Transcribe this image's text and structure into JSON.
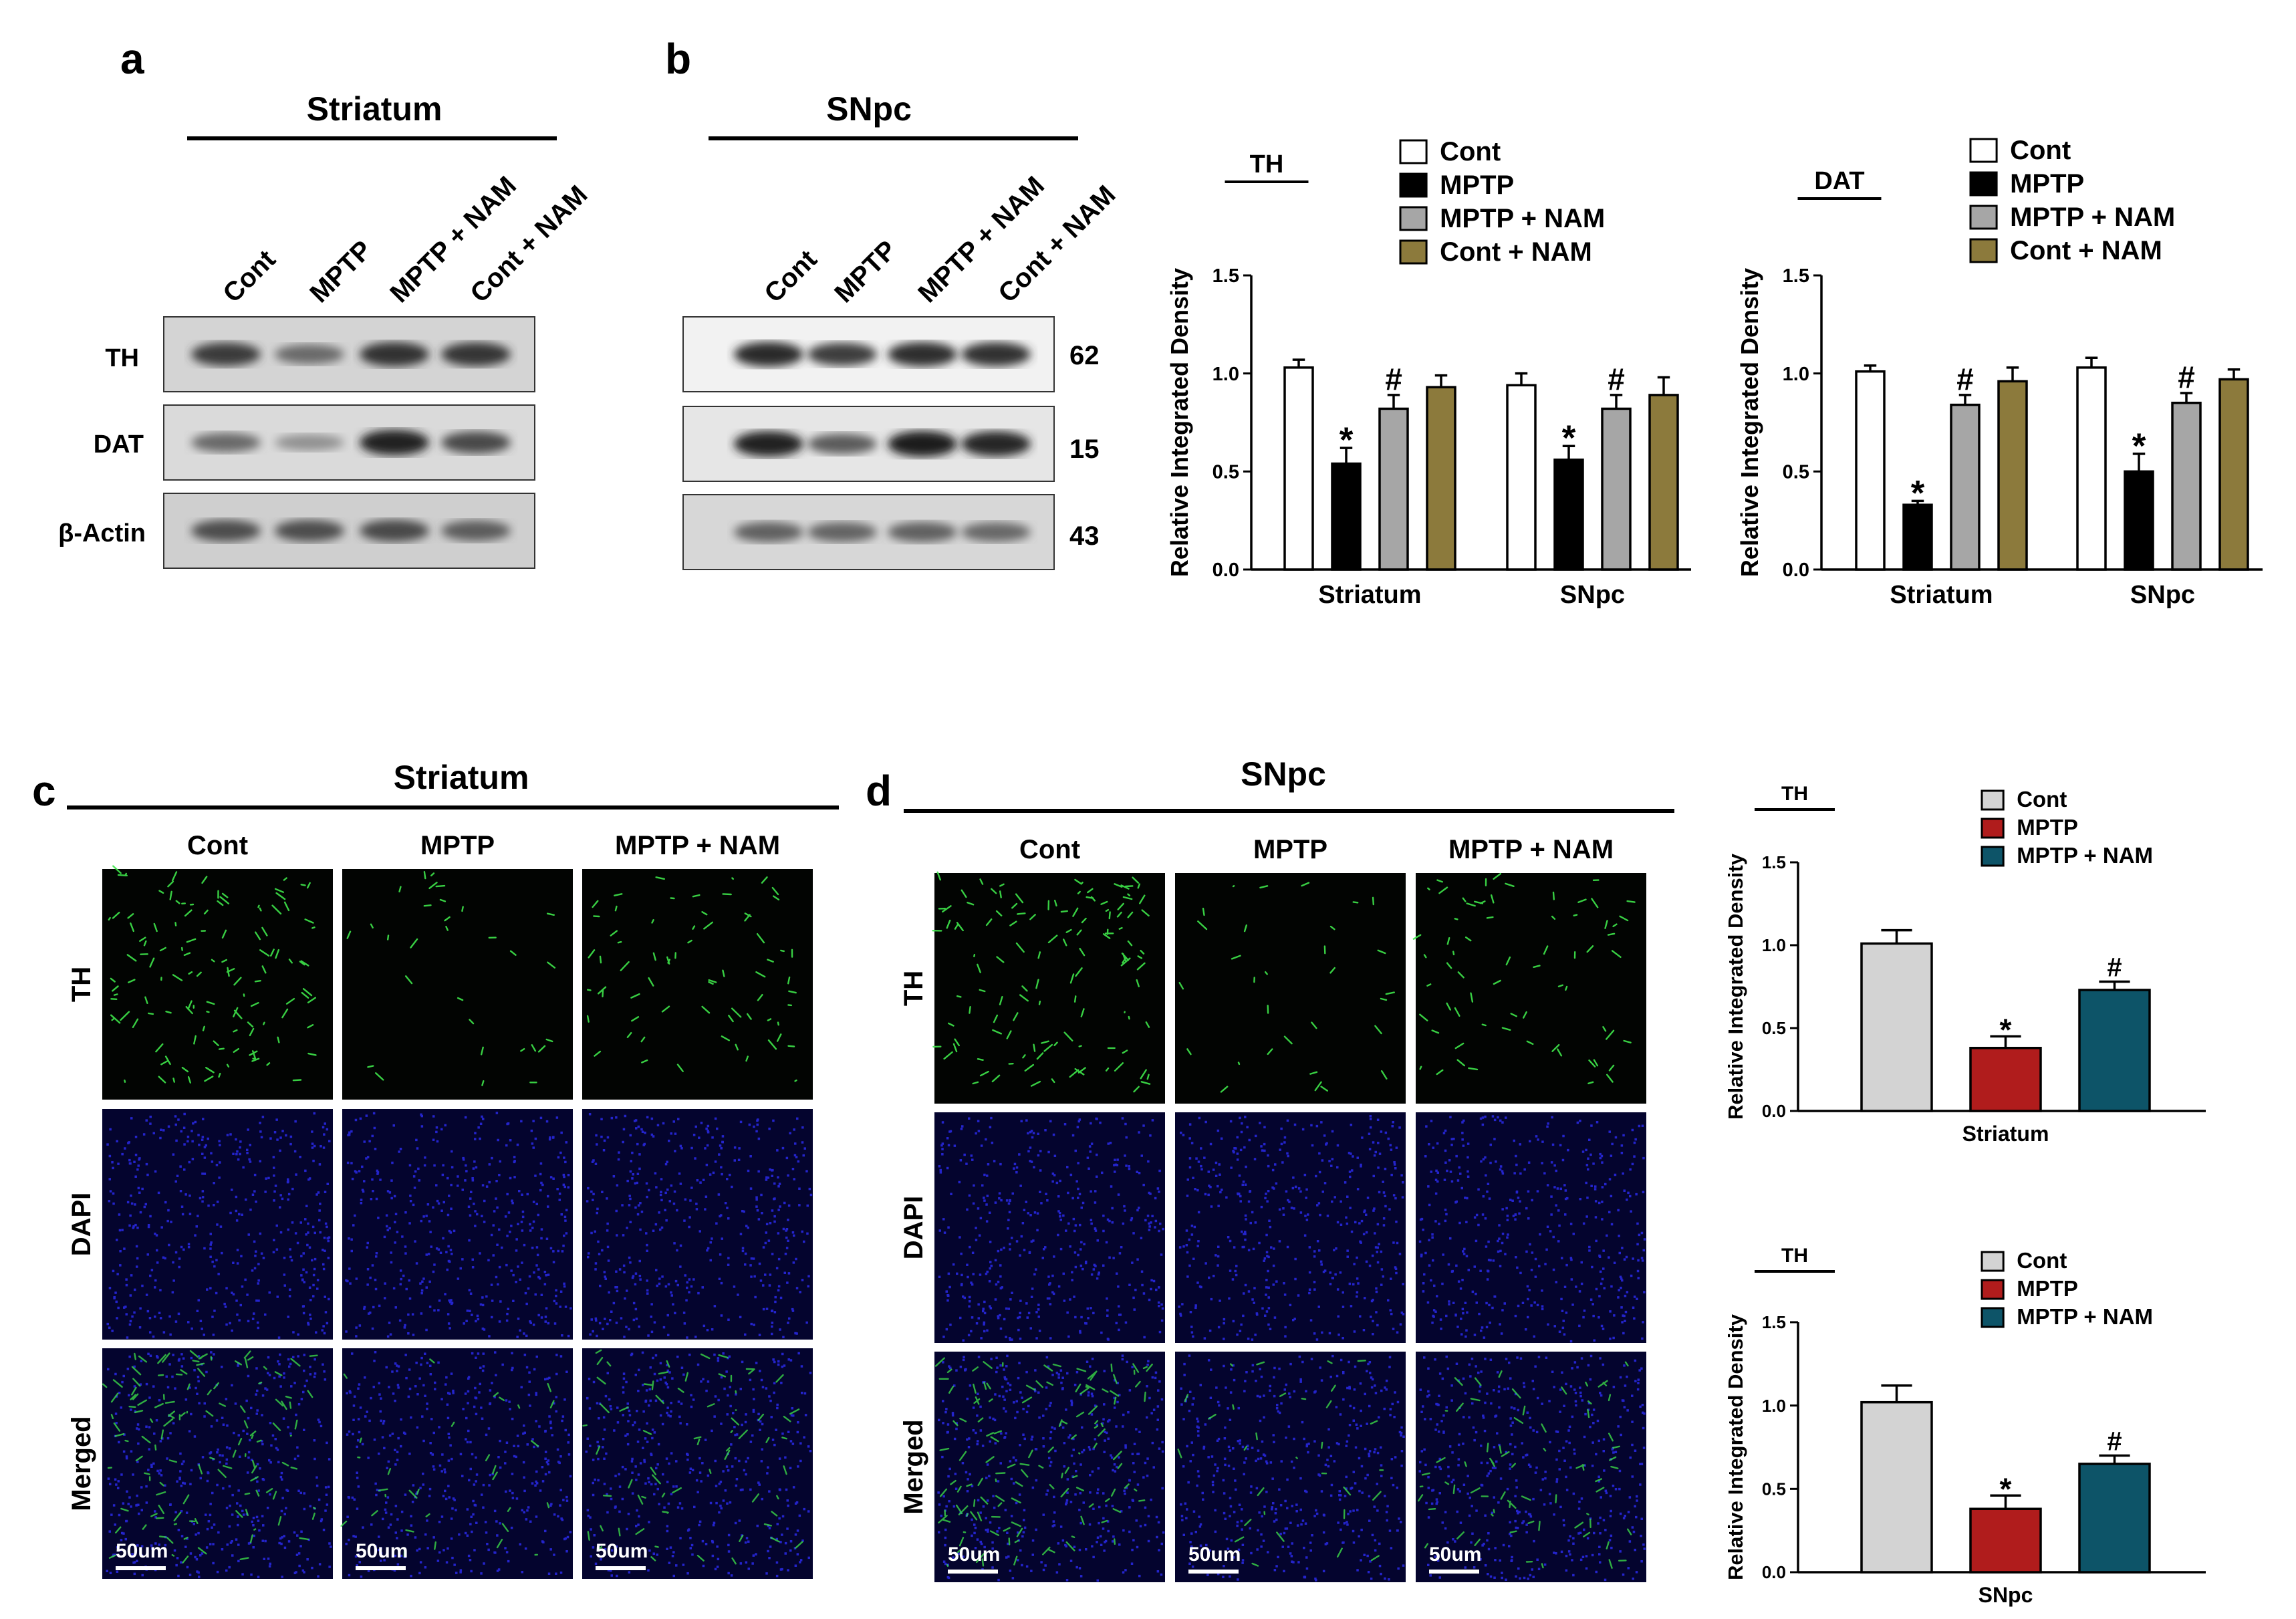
{
  "panels": {
    "a": {
      "letter": "a",
      "region": "Striatum",
      "lanes": [
        "Cont",
        "MPTP",
        "MPTP + NAM",
        "Cont + NAM"
      ],
      "rows": [
        "TH",
        "DAT",
        "β-Actin"
      ],
      "band_intensity": [
        [
          0.8,
          0.55,
          0.85,
          0.82
        ],
        [
          0.55,
          0.35,
          0.92,
          0.72
        ],
        [
          0.7,
          0.7,
          0.72,
          0.62
        ]
      ]
    },
    "b": {
      "letter": "b",
      "region": "SNpc",
      "lanes": [
        "Cont",
        "MPTP",
        "MPTP + NAM",
        "Cont + NAM"
      ],
      "mw": [
        "62",
        "15",
        "43"
      ],
      "band_intensity": [
        [
          0.88,
          0.78,
          0.86,
          0.84
        ],
        [
          0.92,
          0.62,
          0.95,
          0.9
        ],
        [
          0.6,
          0.58,
          0.6,
          0.56
        ]
      ]
    },
    "c": {
      "letter": "c",
      "region": "Striatum",
      "columns": [
        "Cont",
        "MPTP",
        "MPTP + NAM"
      ],
      "rows": [
        "TH",
        "DAPI",
        "Merged"
      ],
      "scale_bar": "50um"
    },
    "d": {
      "letter": "d",
      "region": "SNpc",
      "columns": [
        "Cont",
        "MPTP",
        "MPTP + NAM"
      ],
      "rows": [
        "TH",
        "DAPI",
        "Merged"
      ],
      "scale_bar": "50um"
    }
  },
  "colors": {
    "cont_open": "#ffffff",
    "mptp_black": "#000000",
    "mptp_nam_gray": "#a6a6a6",
    "cont_nam_olive": "#8c7a3c",
    "cont_light": "#d3d3d3",
    "mptp_red": "#b01c1c",
    "mptp_nam_teal": "#0d5468",
    "th_green": "#3ee64a",
    "dapi_blue": "#2222ee"
  },
  "chart_data": [
    {
      "id": "chart-th-wb",
      "type": "bar",
      "title": "TH",
      "ylabel": "Relative Integrated Density",
      "ylim": [
        0,
        1.5
      ],
      "yticks": [
        "0.0",
        "0.5",
        "1.0",
        "1.5"
      ],
      "categories": [
        "Striatum",
        "SNpc"
      ],
      "series": [
        {
          "name": "Cont",
          "values": [
            1.03,
            0.94
          ],
          "errors": [
            0.04,
            0.06
          ],
          "marks": [
            "",
            ""
          ]
        },
        {
          "name": "MPTP",
          "values": [
            0.54,
            0.56
          ],
          "errors": [
            0.08,
            0.07
          ],
          "marks": [
            "*",
            "*"
          ]
        },
        {
          "name": "MPTP + NAM",
          "values": [
            0.82,
            0.82
          ],
          "errors": [
            0.07,
            0.07
          ],
          "marks": [
            "#",
            "#"
          ]
        },
        {
          "name": "Cont + NAM",
          "values": [
            0.93,
            0.89
          ],
          "errors": [
            0.06,
            0.09
          ],
          "marks": [
            "",
            ""
          ]
        }
      ]
    },
    {
      "id": "chart-dat-wb",
      "type": "bar",
      "title": "DAT",
      "ylabel": "Relative Integrated Density",
      "ylim": [
        0,
        1.5
      ],
      "yticks": [
        "0.0",
        "0.5",
        "1.0",
        "1.5"
      ],
      "categories": [
        "Striatum",
        "SNpc"
      ],
      "series": [
        {
          "name": "Cont",
          "values": [
            1.01,
            1.03
          ],
          "errors": [
            0.03,
            0.05
          ],
          "marks": [
            "",
            ""
          ]
        },
        {
          "name": "MPTP",
          "values": [
            0.33,
            0.5
          ],
          "errors": [
            0.02,
            0.09
          ],
          "marks": [
            "*",
            "*"
          ]
        },
        {
          "name": "MPTP + NAM",
          "values": [
            0.84,
            0.85
          ],
          "errors": [
            0.05,
            0.05
          ],
          "marks": [
            "#",
            "#"
          ]
        },
        {
          "name": "Cont + NAM",
          "values": [
            0.96,
            0.97
          ],
          "errors": [
            0.07,
            0.05
          ],
          "marks": [
            "",
            ""
          ]
        }
      ]
    },
    {
      "id": "chart-th-if-striatum",
      "type": "bar",
      "title": "TH",
      "ylabel": "Relative Integrated Density",
      "ylim": [
        0,
        1.5
      ],
      "yticks": [
        "0.0",
        "0.5",
        "1.0",
        "1.5"
      ],
      "categories": [
        "Striatum"
      ],
      "series": [
        {
          "name": "Cont",
          "values": [
            1.01
          ],
          "errors": [
            0.08
          ],
          "marks": [
            ""
          ]
        },
        {
          "name": "MPTP",
          "values": [
            0.38
          ],
          "errors": [
            0.07
          ],
          "marks": [
            "*"
          ]
        },
        {
          "name": "MPTP + NAM",
          "values": [
            0.73
          ],
          "errors": [
            0.05
          ],
          "marks": [
            "#"
          ]
        }
      ]
    },
    {
      "id": "chart-th-if-snpc",
      "type": "bar",
      "title": "TH",
      "ylabel": "Relative Integrated Density",
      "ylim": [
        0,
        1.5
      ],
      "yticks": [
        "0.0",
        "0.5",
        "1.0",
        "1.5"
      ],
      "categories": [
        "SNpc"
      ],
      "series": [
        {
          "name": "Cont",
          "values": [
            1.02
          ],
          "errors": [
            0.1
          ],
          "marks": [
            ""
          ]
        },
        {
          "name": "MPTP",
          "values": [
            0.38
          ],
          "errors": [
            0.08
          ],
          "marks": [
            "*"
          ]
        },
        {
          "name": "MPTP + NAM",
          "values": [
            0.65
          ],
          "errors": [
            0.05
          ],
          "marks": [
            "#"
          ]
        }
      ]
    }
  ]
}
